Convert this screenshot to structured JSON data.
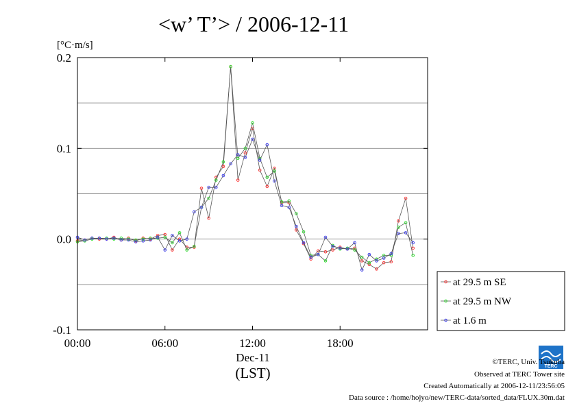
{
  "chart_data": {
    "type": "line",
    "title": "<w’ T’> / 2006-12-11",
    "ylabel": "[°C·m/s]",
    "xlabel_date": "Dec-11",
    "xlabel_unit": "(LST)",
    "x_range_hours": [
      0,
      24
    ],
    "ylim": [
      -0.1,
      0.2
    ],
    "y_ticks": [
      {
        "value": -0.1,
        "label": "-0.1"
      },
      {
        "value": 0.0,
        "label": "0.0"
      },
      {
        "value": 0.1,
        "label": "0.1"
      },
      {
        "value": 0.2,
        "label": "0.2"
      }
    ],
    "y_gridlines": [
      -0.05,
      0.0,
      0.05,
      0.1,
      0.15
    ],
    "x_ticks": [
      {
        "value": 0,
        "label": "00:00"
      },
      {
        "value": 6,
        "label": "06:00"
      },
      {
        "value": 12,
        "label": "12:00"
      },
      {
        "value": 18,
        "label": "18:00"
      }
    ],
    "legend_position": "lower-right outside",
    "series": [
      {
        "name": "at 29.5 m SE",
        "color": "#ff3b3b",
        "values": [
          -0.002,
          -0.001,
          0.001,
          0.0,
          0.0,
          0.002,
          -0.001,
          0.001,
          -0.002,
          0.001,
          0.0,
          0.004,
          0.005,
          -0.012,
          0.0,
          -0.009,
          -0.009,
          0.056,
          0.023,
          0.068,
          0.08,
          0.19,
          0.065,
          0.095,
          0.122,
          0.076,
          0.058,
          0.078,
          0.04,
          0.04,
          0.01,
          -0.005,
          -0.022,
          -0.013,
          -0.014,
          -0.012,
          -0.009,
          -0.011,
          -0.01,
          -0.024,
          -0.028,
          -0.033,
          -0.026,
          -0.025,
          0.02,
          0.045,
          -0.01
        ]
      },
      {
        "name": "at 29.5 m NW",
        "color": "#33dd33",
        "values": [
          -0.003,
          -0.002,
          0.0,
          0.001,
          0.001,
          0.0,
          0.001,
          0.0,
          -0.001,
          0.0,
          0.001,
          0.001,
          0.002,
          -0.004,
          0.007,
          -0.012,
          -0.008,
          0.035,
          0.045,
          0.065,
          0.085,
          0.19,
          0.089,
          0.1,
          0.128,
          0.089,
          0.068,
          0.075,
          0.041,
          0.042,
          0.028,
          0.008,
          -0.018,
          -0.017,
          -0.024,
          -0.007,
          -0.011,
          -0.01,
          -0.012,
          -0.02,
          -0.026,
          -0.022,
          -0.018,
          -0.018,
          0.013,
          0.018,
          -0.018
        ]
      },
      {
        "name": "at 1.6 m",
        "color": "#4444ee",
        "values": [
          0.002,
          -0.001,
          0.001,
          0.001,
          0.0,
          0.001,
          -0.001,
          -0.001,
          -0.003,
          -0.002,
          -0.001,
          0.002,
          -0.012,
          0.004,
          -0.002,
          0.0,
          0.03,
          0.035,
          0.057,
          0.057,
          0.07,
          0.083,
          0.093,
          0.09,
          0.11,
          0.087,
          0.104,
          0.064,
          0.037,
          0.035,
          0.014,
          -0.004,
          -0.02,
          -0.017,
          0.002,
          -0.008,
          -0.01,
          -0.011,
          -0.004,
          -0.034,
          -0.017,
          -0.024,
          -0.021,
          -0.016,
          0.006,
          0.007,
          -0.004
        ]
      }
    ]
  },
  "footer": {
    "copyright": "©TERC, Univ. Tsukuba",
    "observed": "Observed at TERC Tower site",
    "created": "Created Automatically at 2006-12-11/23:56:05",
    "source": "Data source : /home/hojyo/new/TERC-data/sorted_data/FLUX.30m.dat",
    "logo_text": "TERC"
  }
}
